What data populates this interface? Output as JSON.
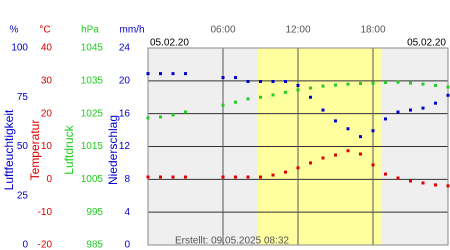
{
  "chart_data": {
    "type": "line",
    "date_left": "05.02.20",
    "date_right": "05.02.20",
    "footer": "Erstellt: 09.05.2025 08:32",
    "xlim": [
      0,
      24
    ],
    "xticks": [
      {
        "value": 6,
        "label": "06:00"
      },
      {
        "value": 12,
        "label": "12:00"
      },
      {
        "value": 18,
        "label": "18:00"
      }
    ],
    "daylight": [
      8.8,
      18.7
    ],
    "grid": true,
    "axes": [
      {
        "label": "Luftfeuchtigkeit",
        "unit": "%",
        "color": "#0000cc",
        "ylim": [
          0,
          100
        ],
        "yticks": [
          0,
          25,
          50,
          75,
          100
        ]
      },
      {
        "label": "Temperatur",
        "unit": "°C",
        "color": "#dd0000",
        "ylim": [
          -20,
          40
        ],
        "yticks": [
          -20,
          -10,
          0,
          10,
          20,
          30,
          40
        ]
      },
      {
        "label": "Luftdruck",
        "unit": "hPa",
        "color": "#22cc22",
        "ylim": [
          985,
          1045
        ],
        "yticks": [
          985,
          995,
          1005,
          1015,
          1025,
          1035,
          1045
        ]
      },
      {
        "label": "Niederschlag",
        "unit": "mm/h",
        "color": "#0000cc",
        "ylim": [
          0,
          24
        ],
        "yticks": [
          0,
          4,
          8,
          12,
          16,
          20,
          24
        ]
      }
    ],
    "x": [
      0,
      1,
      2,
      3,
      4,
      5,
      6,
      7,
      8,
      9,
      10,
      11,
      12,
      13,
      14,
      15,
      16,
      17,
      18,
      19,
      20,
      21,
      22,
      23,
      24
    ],
    "series": [
      {
        "axis": 0,
        "color": "#0000cc",
        "values": [
          87,
          87,
          87,
          87,
          null,
          null,
          85,
          85,
          83,
          83,
          83,
          83,
          81,
          75,
          68.5,
          63,
          59,
          55,
          58,
          64,
          67.5,
          68.5,
          69.5,
          72,
          76
        ]
      },
      {
        "axis": 1,
        "color": "#dd0000",
        "values": [
          0.7,
          0.7,
          0.7,
          0.7,
          null,
          null,
          0.7,
          0.7,
          0.7,
          0.7,
          1.3,
          2.2,
          3.5,
          5,
          6.5,
          7.4,
          8.7,
          7.7,
          4.4,
          1.6,
          0.4,
          -0.5,
          -1.1,
          -1.7,
          -2
        ]
      },
      {
        "axis": 2,
        "color": "#22cc22",
        "values": [
          1023.7,
          1024,
          1024.6,
          1025.5,
          null,
          null,
          1027.6,
          1028.5,
          1029.5,
          1030,
          1030.7,
          1031.5,
          1032.2,
          1032.8,
          1033.4,
          1033.7,
          1034,
          1034.2,
          1034.3,
          1034.5,
          1034.6,
          1034.3,
          1034,
          1033.6,
          1033.1
        ]
      }
    ]
  }
}
